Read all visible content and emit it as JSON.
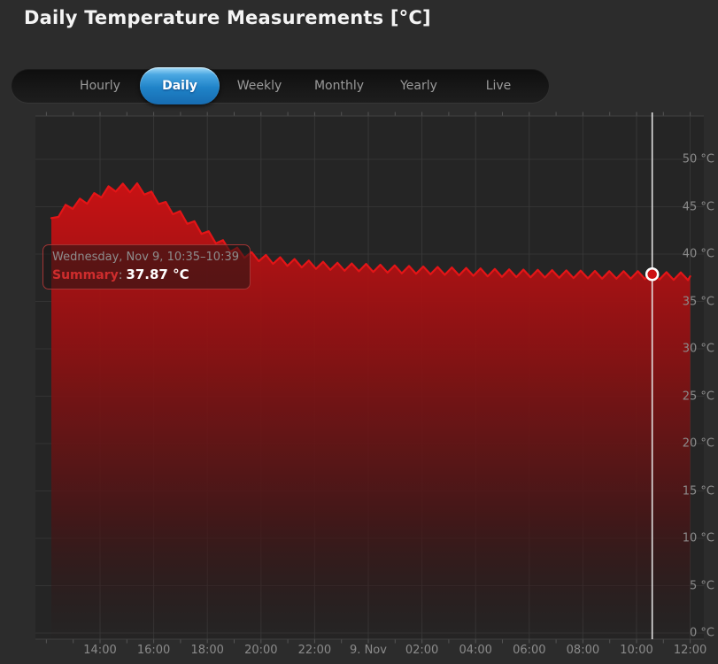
{
  "header": {
    "title": "Daily Temperature Measurements [°C]"
  },
  "tabs": {
    "items": [
      {
        "label": "Hourly",
        "active": false
      },
      {
        "label": "Daily",
        "active": true
      },
      {
        "label": "Weekly",
        "active": false
      },
      {
        "label": "Monthly",
        "active": false
      },
      {
        "label": "Yearly",
        "active": false
      },
      {
        "label": "Live",
        "active": false
      }
    ]
  },
  "tooltip": {
    "date_line": "Wednesday, Nov 9, 10:35–10:39",
    "label": "Summary",
    "separator": ":",
    "value": "37.87 °C"
  },
  "chart_data": {
    "type": "area",
    "title": "Daily Temperature Measurements [°C]",
    "ylabel": "°C",
    "ylim": [
      0,
      52
    ],
    "grid": true,
    "y_tick_values": [
      0,
      5,
      10,
      15,
      20,
      25,
      30,
      35,
      40,
      45,
      50
    ],
    "y_tick_labels": [
      "0 °C",
      "5 °C",
      "10 °C",
      "15 °C",
      "20 °C",
      "25 °C",
      "30 °C",
      "35 °C",
      "40 °C",
      "45 °C",
      "50 °C"
    ],
    "x_tick_labels": [
      "14:00",
      "16:00",
      "18:00",
      "20:00",
      "22:00",
      "9. Nov",
      "02:00",
      "04:00",
      "06:00",
      "08:00",
      "10:00",
      "12:00"
    ],
    "x_tick_minutes_from_noon": [
      120,
      240,
      360,
      480,
      600,
      720,
      840,
      960,
      1080,
      1200,
      1320,
      1440
    ],
    "series": [
      {
        "name": "Temperature",
        "unit": "°C",
        "envelope_points_min_temp": [
          [
            11,
            43.4
          ],
          [
            30,
            44.5
          ],
          [
            60,
            45.2
          ],
          [
            90,
            45.7
          ],
          [
            120,
            46.3
          ],
          [
            145,
            46.9
          ],
          [
            165,
            47.1
          ],
          [
            185,
            46.9
          ],
          [
            205,
            47.1
          ],
          [
            225,
            46.5
          ],
          [
            245,
            45.9
          ],
          [
            270,
            45.0
          ],
          [
            300,
            44.1
          ],
          [
            330,
            43.1
          ],
          [
            360,
            42.1
          ],
          [
            390,
            41.2
          ],
          [
            420,
            40.4
          ],
          [
            450,
            39.9
          ],
          [
            480,
            39.6
          ],
          [
            510,
            39.35
          ],
          [
            540,
            39.15
          ],
          [
            570,
            39.0
          ],
          [
            600,
            38.85
          ],
          [
            660,
            38.65
          ],
          [
            720,
            38.55
          ],
          [
            780,
            38.4
          ],
          [
            840,
            38.3
          ],
          [
            900,
            38.2
          ],
          [
            960,
            38.1
          ],
          [
            1020,
            38.0
          ],
          [
            1080,
            37.95
          ],
          [
            1140,
            37.9
          ],
          [
            1200,
            37.85
          ],
          [
            1260,
            37.8
          ],
          [
            1320,
            37.8
          ],
          [
            1380,
            37.7
          ],
          [
            1440,
            37.65
          ]
        ],
        "oscillation": {
          "period_min": 32,
          "amplitude_c": 0.4
        }
      }
    ],
    "cursor": {
      "time_label": "10:35",
      "time_min": 1355,
      "value_c": 37.87
    },
    "colors": {
      "line": "#e31517",
      "fill_top": "#d01113",
      "fill_mid": "#8e1112",
      "fill_low": "#4a1516",
      "plot_bg": "#252525",
      "page_bg": "#2c2c2c",
      "grid": "#333333",
      "axis_line": "#414141",
      "label": "#8b8b8b",
      "cursor_line": "#e9e9e9",
      "accent_blue": "#1f83c8",
      "tooltip_border": "#a33434"
    }
  }
}
